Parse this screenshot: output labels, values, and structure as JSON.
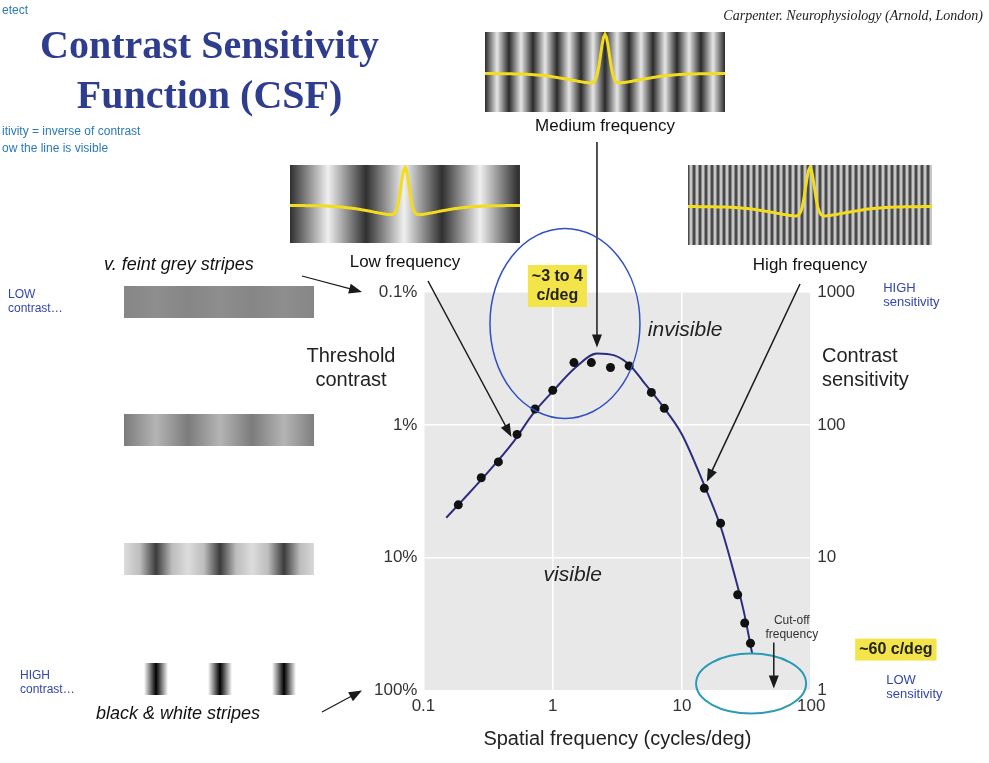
{
  "chart_data": {
    "type": "line",
    "title": "Contrast Sensitivity Function (CSF)",
    "source": "Carpenter. Neurophysiology (Arnold, London)",
    "x_label": "Spatial frequency (cycles/deg)",
    "y_label": "Threshold contrast",
    "y2_label": "Contrast sensitivity",
    "log": true,
    "grid": true,
    "xlim": [
      0.1,
      100
    ],
    "xticks": [
      0.1,
      1,
      10,
      100
    ],
    "ylim": [
      100,
      0.1
    ],
    "yticks": [
      {
        "value": 100,
        "label": "100%"
      },
      {
        "value": 10,
        "label": "10%"
      },
      {
        "value": 1,
        "label": "1%"
      },
      {
        "value": 0.1,
        "label": "0.1%"
      }
    ],
    "y2lim": [
      1,
      1000
    ],
    "y2ticks": [
      1,
      10,
      100,
      1000
    ],
    "series": [
      {
        "type": "scatter",
        "marker": "circle",
        "color": "#111111",
        "x": [
          0.186,
          0.28,
          0.38,
          0.53,
          0.73,
          1.0,
          1.46,
          1.99,
          2.8,
          3.9,
          5.8,
          7.3,
          14.9,
          19.9,
          27,
          30.6,
          33.9
        ],
        "values": [
          4.0,
          2.5,
          1.9,
          1.18,
          0.76,
          0.55,
          0.34,
          0.34,
          0.37,
          0.36,
          0.57,
          0.75,
          3.0,
          5.5,
          19,
          31,
          44
        ]
      },
      {
        "type": "line",
        "line_style": "solid",
        "color": "#2d2d80",
        "x": [
          0.15,
          0.2,
          0.3,
          0.5,
          0.7,
          1,
          1.5,
          2.2,
          3,
          4,
          5,
          7,
          10,
          15,
          20,
          25,
          30,
          35
        ],
        "values": [
          5.0,
          3.7,
          2.4,
          1.33,
          0.83,
          0.56,
          0.37,
          0.29,
          0.3,
          0.36,
          0.47,
          0.71,
          1.18,
          2.9,
          5.9,
          12.5,
          25,
          53
        ]
      }
    ],
    "annotations": {
      "fragments": [
        "etect",
        "itivity = inverse of contrast",
        "ow the line is visible"
      ],
      "low_frequency": "Low frequency",
      "medium_frequency": "Medium frequency",
      "high_frequency": "High frequency",
      "peak": "~3 to 4 c/deg",
      "invisible": "invisible",
      "visible": "visible",
      "cutoff": "Cut-off frequency",
      "cutoff_value": "~60 c/deg",
      "high_sensitivity": "HIGH sensitivity",
      "low_sensitivity": "LOW sensitivity",
      "low_contrast": "LOW contrast…",
      "high_contrast": "HIGH contrast…",
      "feint": "v. feint grey stripes",
      "black_white": "black & white stripes"
    }
  }
}
